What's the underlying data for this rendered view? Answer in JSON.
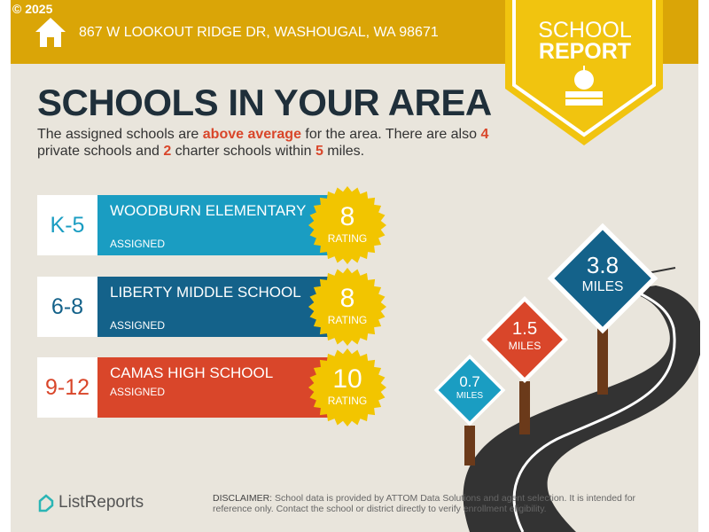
{
  "copyright": "© 2025",
  "address": "867 W LOOKOUT RIDGE DR, WASHOUGAL, WA 98671",
  "badge": {
    "line1": "SCHOOL",
    "line2": "REPORT"
  },
  "title": "SCHOOLS IN YOUR AREA",
  "intro": {
    "p1": "The assigned schools are ",
    "hl1": "above average",
    "p2": " for the area. There are also ",
    "hl2": "4",
    "p3": " private schools and ",
    "hl3": "2",
    "p4": " charter schools within ",
    "hl4": "5",
    "p5": " miles."
  },
  "schools": [
    {
      "grades": "K-5",
      "name": "WOODBURN ELEMENTARY",
      "status": "ASSIGNED",
      "rating": "8",
      "rating_label": "RATING",
      "color": "#1a9dc2"
    },
    {
      "grades": "6-8",
      "name": "LIBERTY MIDDLE SCHOOL",
      "status": "ASSIGNED",
      "rating": "8",
      "rating_label": "RATING",
      "color": "#14628a"
    },
    {
      "grades": "9-12",
      "name": "CAMAS HIGH SCHOOL",
      "status": "ASSIGNED",
      "rating": "10",
      "rating_label": "RATING",
      "color": "#d9462a"
    }
  ],
  "signs": [
    {
      "value": "0.7",
      "unit": "MILES",
      "color": "#1a9dc2"
    },
    {
      "value": "1.5",
      "unit": "MILES",
      "color": "#d9462a"
    },
    {
      "value": "3.8",
      "unit": "MILES",
      "color": "#14628a"
    }
  ],
  "logo": "ListReports",
  "disclaimer": {
    "label": "DISCLAIMER:",
    "text": " School data is provided by ATTOM Data Solutions and agent selection. It is intended for reference only. Contact the school or district directly to verify enrollment eligibility."
  }
}
